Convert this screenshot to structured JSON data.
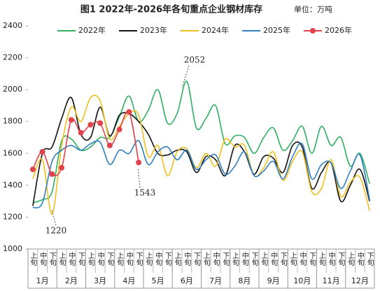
{
  "chart_data": {
    "type": "line",
    "title": "图1 2022年-2026年各旬重点企业钢材库存",
    "unit": "单位：万吨",
    "categories": [
      "上旬",
      "中旬",
      "下旬",
      "上旬",
      "中旬",
      "下旬",
      "上旬",
      "中旬",
      "下旬",
      "上旬",
      "中旬",
      "下旬",
      "上旬",
      "中旬",
      "下旬",
      "上旬",
      "中旬",
      "下旬",
      "上旬",
      "中旬",
      "下旬",
      "上旬",
      "中旬",
      "下旬",
      "上旬",
      "中旬",
      "下旬",
      "上旬",
      "中旬",
      "下旬",
      "上旬",
      "中旬",
      "下旬",
      "上旬",
      "中旬",
      "下旬"
    ],
    "months": [
      "1月",
      "2月",
      "3月",
      "4月",
      "5月",
      "6月",
      "7月",
      "8月",
      "9月",
      "10月",
      "11月",
      "12月"
    ],
    "series": [
      {
        "name": "2022年",
        "color": "#2fb062",
        "values": [
          1290,
          1310,
          1360,
          1680,
          1690,
          1620,
          1640,
          1700,
          1700,
          1830,
          1960,
          1800,
          1870,
          2000,
          1790,
          1850,
          2052,
          1760,
          1820,
          1900,
          1660,
          1710,
          1700,
          1600,
          1700,
          1760,
          1620,
          1680,
          1770,
          1600,
          1770,
          1650,
          1700,
          1520,
          1600,
          1410
        ]
      },
      {
        "name": "2023年",
        "color": "#111111",
        "values": [
          1270,
          1600,
          1640,
          1820,
          1950,
          1720,
          1700,
          1890,
          1710,
          1840,
          1850,
          1800,
          1720,
          1600,
          1590,
          1620,
          1610,
          1480,
          1580,
          1560,
          1460,
          1650,
          1610,
          1470,
          1580,
          1570,
          1480,
          1650,
          1640,
          1380,
          1480,
          1540,
          1300,
          1400,
          1500,
          1300
        ]
      },
      {
        "name": "2024年",
        "color": "#f0c020",
        "values": [
          1440,
          1560,
          1220,
          1650,
          1890,
          1800,
          1950,
          1930,
          1690,
          1770,
          1850,
          1840,
          1580,
          1650,
          1460,
          1610,
          1630,
          1510,
          1600,
          1520,
          1690,
          1640,
          1650,
          1460,
          1510,
          1610,
          1430,
          1550,
          1610,
          1360,
          1380,
          1560,
          1330,
          1420,
          1450,
          1240
        ]
      },
      {
        "name": "2025年",
        "color": "#2f7fc1",
        "values": [
          1260,
          1290,
          1550,
          1620,
          1650,
          1620,
          1660,
          1670,
          1530,
          1620,
          1600,
          1680,
          1530,
          1610,
          1640,
          1560,
          1620,
          1500,
          1560,
          1590,
          1470,
          1520,
          1610,
          1460,
          1490,
          1550,
          1440,
          1580,
          1660,
          1440,
          1530,
          1540,
          1380,
          1490,
          1590,
          1310
        ]
      },
      {
        "name": "2026年",
        "color": "#e0434c",
        "markers": true,
        "values": [
          1500,
          1610,
          1470,
          1510,
          1810,
          1730,
          1780,
          1790,
          1650,
          1750,
          1860,
          1543,
          null,
          null,
          null,
          null,
          null,
          null,
          null,
          null,
          null,
          null,
          null,
          null,
          null,
          null,
          null,
          null,
          null,
          null,
          null,
          null,
          null,
          null,
          null,
          null
        ]
      }
    ],
    "annotations": [
      "2052",
      "1220",
      "1543"
    ],
    "ylim": [
      1000,
      2400
    ],
    "yticks": [
      1000,
      1200,
      1400,
      1600,
      1800,
      2000,
      2200,
      2400
    ],
    "grid": false
  }
}
